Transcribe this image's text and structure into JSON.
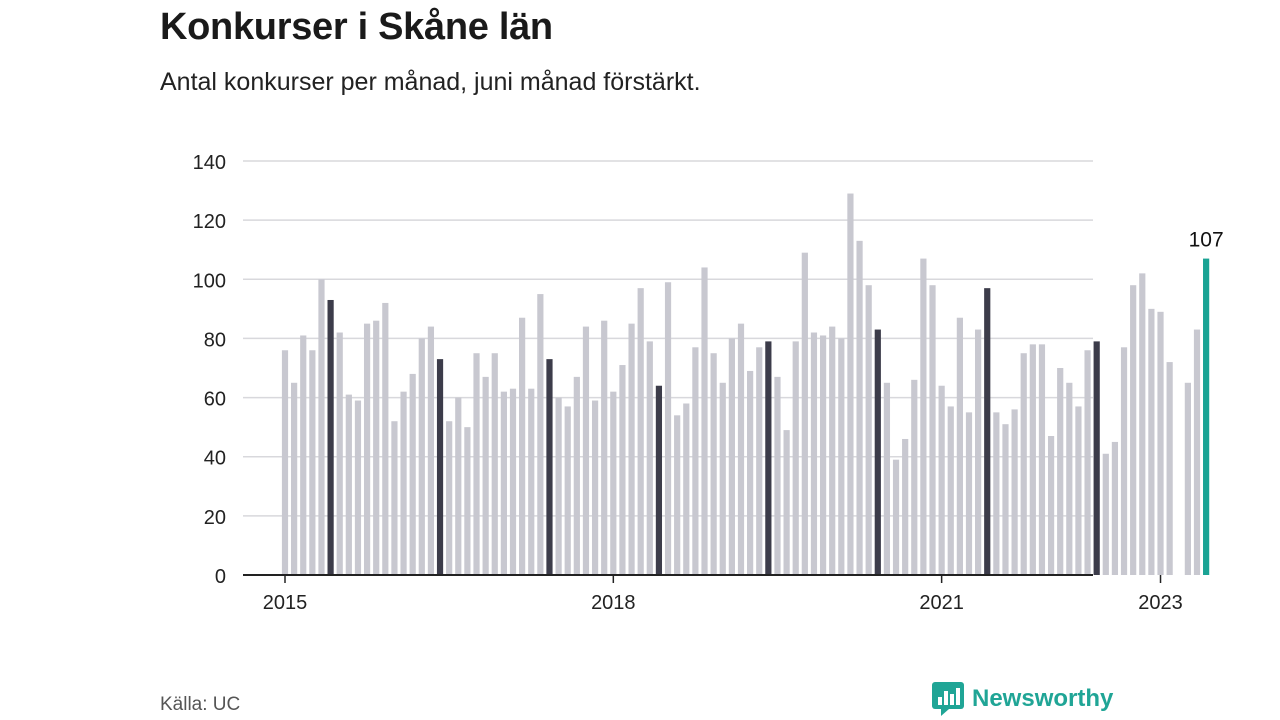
{
  "title": "Konkurser i Skåne län",
  "subtitle": "Antal konkurser per månad, juni månad förstärkt.",
  "source": "Källa: UC",
  "brand": {
    "name": "Newsworthy",
    "icon": "newsworthy-logo-icon",
    "color": "#20a596"
  },
  "colors": {
    "bar": "#c8c8d0",
    "june": "#3c3c4a",
    "current": "#1aa394",
    "grid": "#d8d8dc",
    "axis": "#222222"
  },
  "chart_data": {
    "type": "bar",
    "title": "Konkurser i Skåne län",
    "subtitle": "Antal konkurser per månad, juni månad förstärkt.",
    "xlabel": "",
    "ylabel": "",
    "ylim": [
      0,
      140
    ],
    "yticks": [
      0,
      20,
      40,
      60,
      80,
      100,
      120,
      140
    ],
    "xtick_labels": [
      "2015",
      "2018",
      "2021",
      "2023"
    ],
    "grid": true,
    "start": "2015-01",
    "months": [
      "2015-01",
      "2015-02",
      "2015-03",
      "2015-04",
      "2015-05",
      "2015-06",
      "2015-07",
      "2015-08",
      "2015-09",
      "2015-10",
      "2015-11",
      "2015-12",
      "2016-01",
      "2016-02",
      "2016-03",
      "2016-04",
      "2016-05",
      "2016-06",
      "2016-07",
      "2016-08",
      "2016-09",
      "2016-10",
      "2016-11",
      "2016-12",
      "2017-01",
      "2017-02",
      "2017-03",
      "2017-04",
      "2017-05",
      "2017-06",
      "2017-07",
      "2017-08",
      "2017-09",
      "2017-10",
      "2017-11",
      "2017-12",
      "2018-01",
      "2018-02",
      "2018-03",
      "2018-04",
      "2018-05",
      "2018-06",
      "2018-07",
      "2018-08",
      "2018-09",
      "2018-10",
      "2018-11",
      "2018-12",
      "2019-01",
      "2019-02",
      "2019-03",
      "2019-04",
      "2019-05",
      "2019-06",
      "2019-07",
      "2019-08",
      "2019-09",
      "2019-10",
      "2019-11",
      "2019-12",
      "2020-01",
      "2020-02",
      "2020-03",
      "2020-04",
      "2020-05",
      "2020-06",
      "2020-07",
      "2020-08",
      "2020-09",
      "2020-10",
      "2020-11",
      "2020-12",
      "2021-01",
      "2021-02",
      "2021-03",
      "2021-04",
      "2021-05",
      "2021-06",
      "2021-07",
      "2021-08",
      "2021-09",
      "2021-10",
      "2021-11",
      "2021-12",
      "2022-01",
      "2022-02",
      "2022-03",
      "2022-04",
      "2022-05",
      "2022-06",
      "2022-07",
      "2022-08",
      "2022-09",
      "2022-10",
      "2022-11",
      "2022-12",
      "2023-01",
      "2023-02",
      "2023-03",
      "2023-04",
      "2023-05",
      "2023-06"
    ],
    "values": [
      76,
      65,
      81,
      76,
      100,
      93,
      82,
      61,
      59,
      85,
      86,
      92,
      52,
      62,
      68,
      80,
      84,
      73,
      52,
      60,
      50,
      75,
      67,
      75,
      62,
      63,
      87,
      63,
      95,
      73,
      60,
      57,
      67,
      84,
      59,
      86,
      62,
      71,
      85,
      97,
      79,
      64,
      99,
      54,
      58,
      77,
      104,
      75,
      65,
      80,
      85,
      69,
      77,
      79,
      67,
      49,
      79,
      109,
      82,
      81,
      84,
      80,
      129,
      113,
      98,
      83,
      65,
      39,
      46,
      66,
      107,
      98,
      64,
      57,
      87,
      55,
      83,
      97,
      55,
      51,
      56,
      75,
      78,
      78,
      47,
      70,
      65,
      57,
      76,
      79,
      41,
      45,
      77,
      98,
      102,
      90,
      89,
      72,
      0,
      65,
      83,
      107
    ],
    "highlight_june": true,
    "annotation": {
      "month": "2023-06",
      "value": 107,
      "label": "107"
    }
  }
}
